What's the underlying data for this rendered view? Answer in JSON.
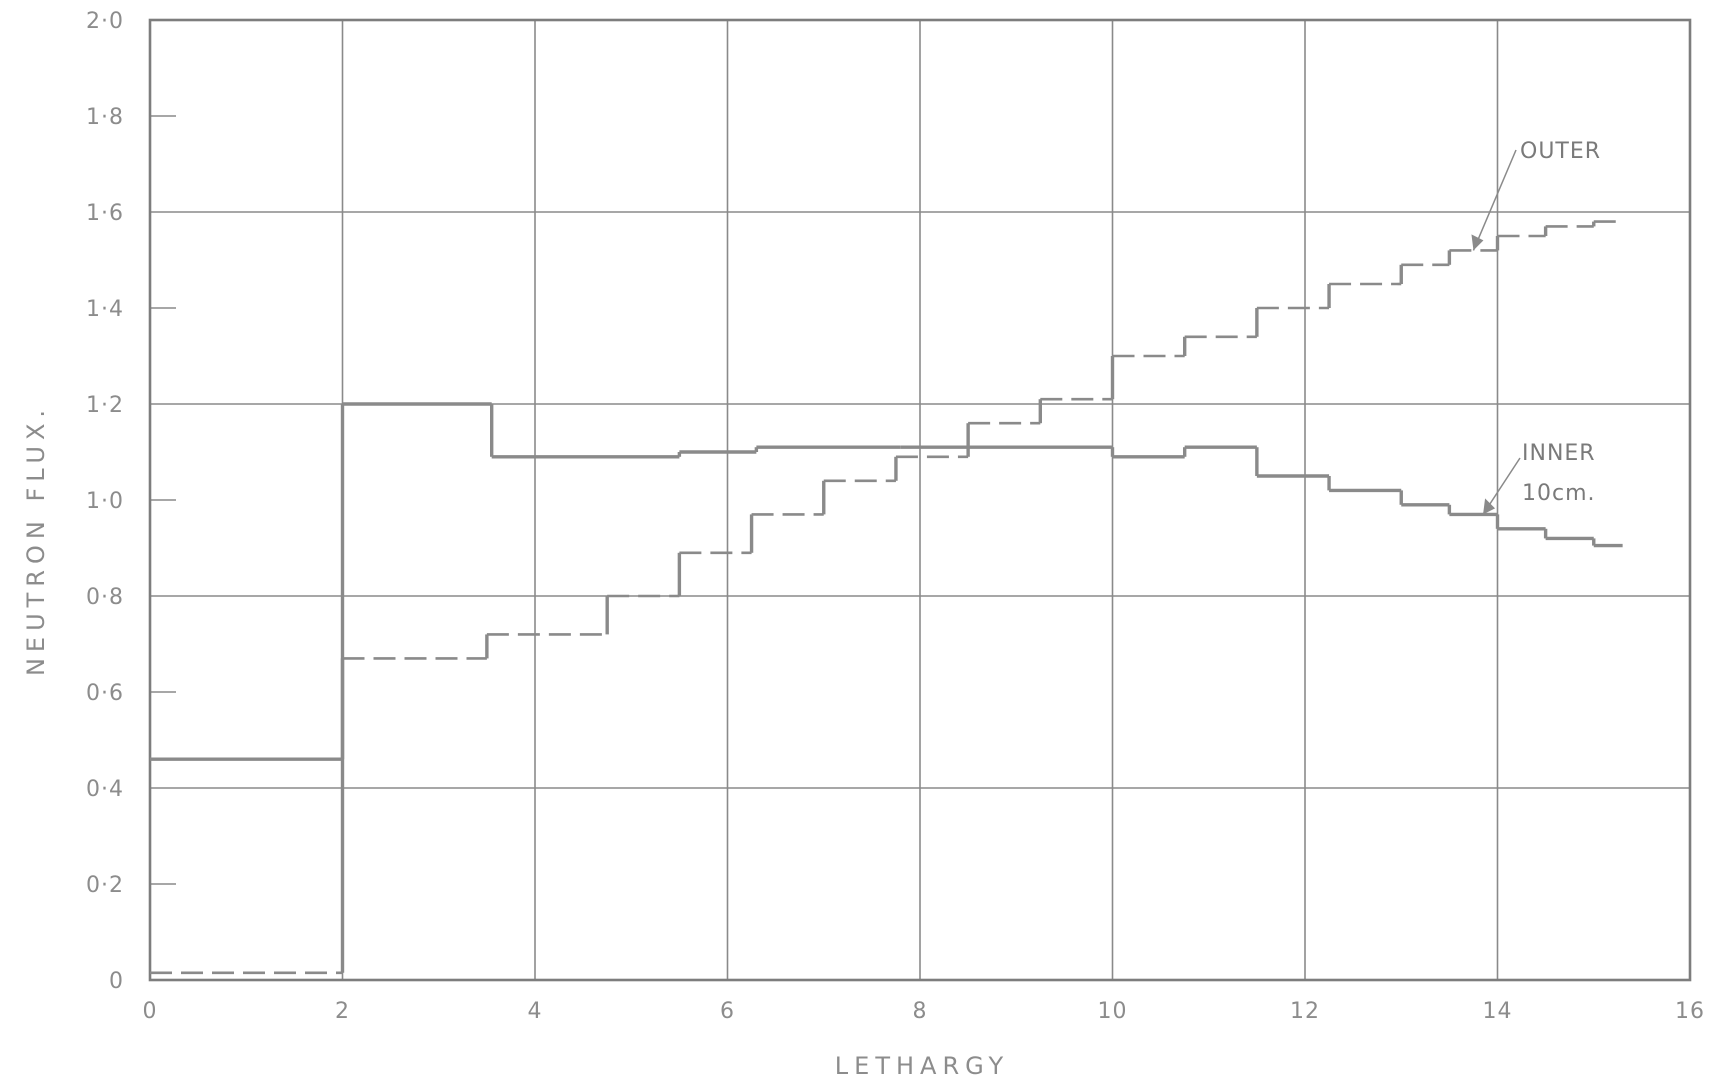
{
  "chart_data": {
    "type": "line",
    "step": true,
    "xlabel": "LETHARGY",
    "ylabel": "NEUTRON FLUX.",
    "xlim": [
      0,
      16
    ],
    "ylim": [
      0,
      2.0
    ],
    "x_ticks": [
      0,
      2,
      4,
      6,
      8,
      10,
      12,
      14,
      16
    ],
    "x_tick_labels": [
      "0",
      "2",
      "4",
      "6",
      "8",
      "10",
      "12",
      "14",
      "16"
    ],
    "y_ticks": [
      0,
      0.2,
      0.4,
      0.6,
      0.8,
      1.0,
      1.2,
      1.4,
      1.6,
      1.8,
      2.0
    ],
    "y_tick_labels": [
      "0",
      "0·2",
      "0·4",
      "0·6",
      "0·8",
      "1·0",
      "1·2",
      "1·4",
      "1·6",
      "1·8",
      "2·0"
    ],
    "grid": true,
    "series": [
      {
        "name": "INNER 10cm.",
        "style": "solid",
        "steps": [
          [
            0,
            2.0,
            0.46
          ],
          [
            2.0,
            3.55,
            1.2
          ],
          [
            3.55,
            5.5,
            1.09
          ],
          [
            5.5,
            6.3,
            1.1
          ],
          [
            6.3,
            7.8,
            1.11
          ],
          [
            7.8,
            10.0,
            1.11
          ],
          [
            10.0,
            10.75,
            1.09
          ],
          [
            10.75,
            11.5,
            1.11
          ],
          [
            11.5,
            12.25,
            1.05
          ],
          [
            12.25,
            13.0,
            1.02
          ],
          [
            13.0,
            13.5,
            0.99
          ],
          [
            13.5,
            14.0,
            0.97
          ],
          [
            14.0,
            14.5,
            0.94
          ],
          [
            14.5,
            15.0,
            0.92
          ],
          [
            15.0,
            15.3,
            0.905
          ]
        ]
      },
      {
        "name": "OUTER",
        "style": "dashed",
        "steps": [
          [
            0,
            2.0,
            0.015
          ],
          [
            2.0,
            3.5,
            0.67
          ],
          [
            3.5,
            4.75,
            0.72
          ],
          [
            4.75,
            5.5,
            0.8
          ],
          [
            5.5,
            6.25,
            0.89
          ],
          [
            6.25,
            7.0,
            0.97
          ],
          [
            7.0,
            7.75,
            1.04
          ],
          [
            7.75,
            8.5,
            1.09
          ],
          [
            8.5,
            9.25,
            1.16
          ],
          [
            9.25,
            10.0,
            1.21
          ],
          [
            10.0,
            10.75,
            1.3
          ],
          [
            10.75,
            11.5,
            1.34
          ],
          [
            11.5,
            12.25,
            1.4
          ],
          [
            12.25,
            13.0,
            1.45
          ],
          [
            13.0,
            13.5,
            1.49
          ],
          [
            13.5,
            14.0,
            1.52
          ],
          [
            14.0,
            14.5,
            1.55
          ],
          [
            14.5,
            15.0,
            1.57
          ],
          [
            15.0,
            15.3,
            1.58
          ]
        ]
      }
    ],
    "annotations": {
      "outer": "OUTER",
      "inner_line1": "INNER",
      "inner_line2": "10cm."
    }
  }
}
